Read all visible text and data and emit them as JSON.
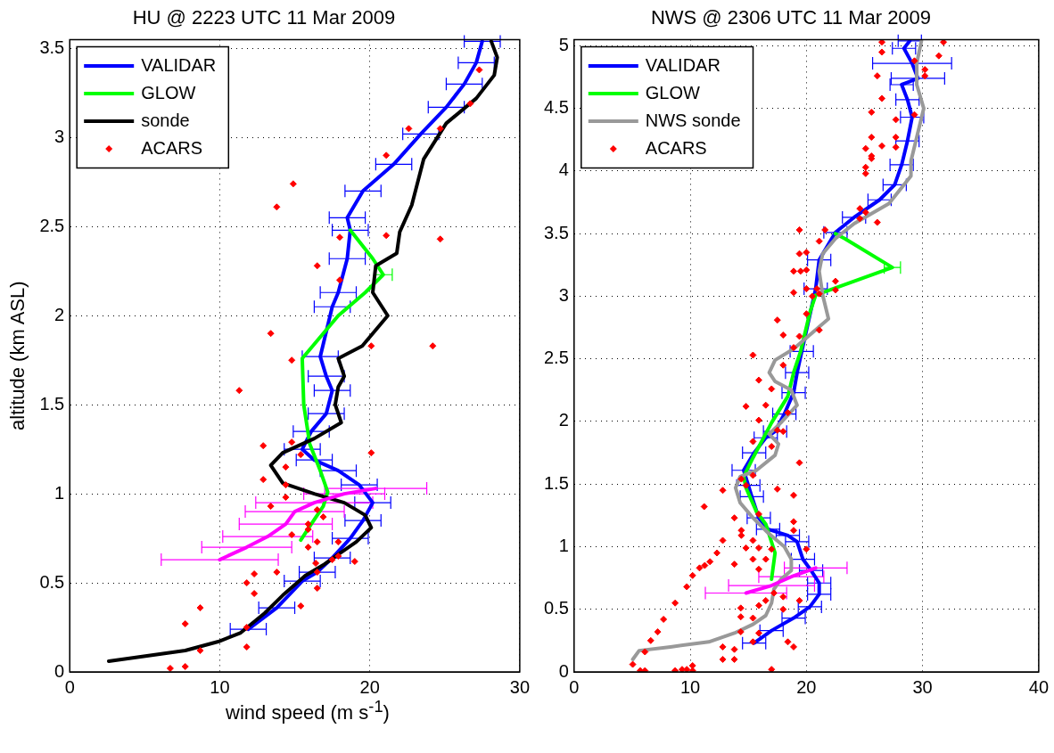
{
  "chart_data": [
    {
      "type": "line",
      "title": "HU @ 2223 UTC 11 Mar 2009",
      "xlabel": "wind speed (m s$^{-1}$)",
      "ylabel": "altitude (km ASL)",
      "xlim": [
        0,
        30
      ],
      "xticks": [
        0,
        10,
        20,
        30
      ],
      "ylim": [
        0,
        3.55
      ],
      "yticks": [
        0,
        0.5,
        1,
        1.5,
        2,
        2.5,
        3,
        3.5
      ],
      "grid": true,
      "legend": "top left",
      "series": [
        {
          "name": "VALIDAR",
          "type": "line",
          "color": "#0000ff",
          "marker": "none",
          "x": [
            11.9,
            13.8,
            15.5,
            16.5,
            17.5,
            18.7,
            19.55,
            20.2,
            19.3,
            17.9,
            16.3,
            15.5,
            16.1,
            17.1,
            17.5,
            17.1,
            16.7,
            17.5,
            17.9,
            18.5,
            18.7,
            18.5,
            19.55,
            21.6,
            23.4,
            25.1,
            26.3,
            27.1,
            27.5
          ],
          "values": [
            0.24,
            0.36,
            0.51,
            0.56,
            0.64,
            0.75,
            0.85,
            0.95,
            1.05,
            1.13,
            1.19,
            1.25,
            1.35,
            1.45,
            1.58,
            1.66,
            1.77,
            2.05,
            2.13,
            2.32,
            2.48,
            2.55,
            2.7,
            2.85,
            3.02,
            3.17,
            3.3,
            3.42,
            3.54
          ],
          "xerrors": [
            1.2,
            1.2,
            1.2,
            1.2,
            1.2,
            1.2,
            1.2,
            1.2,
            1.2,
            1.2,
            1.2,
            1.2,
            1.2,
            1.2,
            1.2,
            1.2,
            1.2,
            1.2,
            1.2,
            1.2,
            1.2,
            1.2,
            1.2,
            1.2,
            1.2,
            1.2,
            1.2,
            1.2,
            1.2
          ]
        },
        {
          "name": "GLOW",
          "type": "line",
          "color": "#00ff00",
          "marker": "none",
          "x": [
            15.4,
            16.1,
            16.9,
            17.2,
            16.7,
            16.0,
            15.6,
            15.5,
            17.9,
            19.7,
            20.9,
            20.2,
            18.7
          ],
          "values": [
            0.74,
            0.83,
            0.93,
            1.01,
            1.13,
            1.28,
            1.5,
            1.76,
            2.0,
            2.13,
            2.23,
            2.32,
            2.48
          ],
          "xerrors": [
            null,
            null,
            null,
            null,
            null,
            null,
            null,
            null,
            null,
            null,
            0.6,
            null,
            null
          ]
        },
        {
          "name": "sonde",
          "type": "line",
          "color": "#000000",
          "marker": "none",
          "x": [
            2.6,
            7.7,
            9.9,
            11.4,
            13.0,
            14.2,
            15.7,
            16.9,
            17.9,
            19.1,
            20.1,
            19.7,
            18.3,
            16.3,
            14.2,
            13.4,
            14.2,
            16.3,
            18.1,
            17.7,
            17.9,
            18.3,
            17.9,
            19.5,
            21.2,
            20.2,
            20.4,
            21.8,
            22.0,
            22.8,
            23.6,
            25.1,
            27.1,
            28.3,
            28.5,
            28.1
          ],
          "values": [
            0.06,
            0.12,
            0.17,
            0.22,
            0.33,
            0.43,
            0.54,
            0.6,
            0.66,
            0.73,
            0.81,
            0.88,
            0.95,
            1.0,
            1.06,
            1.16,
            1.23,
            1.31,
            1.4,
            1.5,
            1.6,
            1.66,
            1.76,
            1.83,
            2.0,
            2.13,
            2.28,
            2.35,
            2.47,
            2.62,
            2.88,
            3.08,
            3.22,
            3.35,
            3.45,
            3.54
          ]
        },
        {
          "type": "line",
          "color": "#ff00ff",
          "marker": "none",
          "x": [
            10.0,
            11.8,
            13.2,
            14.4,
            15.0,
            16.3,
            18.3,
            20.4
          ],
          "values": [
            0.63,
            0.7,
            0.76,
            0.83,
            0.9,
            0.95,
            1.0,
            1.03
          ],
          "xerrors": [
            3.9,
            3.0,
            3.0,
            3.1,
            3.3,
            3.9,
            2.7,
            3.4
          ]
        },
        {
          "name": "ACARS",
          "type": "scatter",
          "color": "#ff0000",
          "marker": "diamond",
          "x": [
            27.3,
            26.7,
            22.6,
            24.7,
            21.1,
            14.9,
            13.8,
            18.0,
            21.1,
            24.7,
            16.5,
            18.0,
            13.4,
            20.1,
            24.2,
            14.8,
            11.3,
            12.9,
            14.8,
            15.4,
            20.1,
            14.4,
            12.9,
            14.4,
            14.4,
            13.4,
            16.5,
            16.9,
            15.9,
            15.9,
            14.8,
            16.5,
            17.9,
            15.9,
            17.5,
            17.9,
            19.0,
            16.4,
            16.5,
            13.8,
            12.3,
            11.8,
            12.3,
            16.5,
            15.4,
            8.7,
            7.7,
            11.8,
            11.8,
            8.7,
            7.7,
            6.7
          ],
          "values": [
            3.38,
            3.19,
            3.05,
            3.05,
            2.9,
            2.74,
            2.61,
            2.44,
            2.45,
            2.43,
            2.28,
            2.2,
            1.9,
            1.83,
            1.83,
            1.75,
            1.58,
            1.27,
            1.29,
            1.22,
            1.23,
            1.15,
            1.08,
            1.05,
            0.98,
            0.93,
            0.91,
            0.87,
            0.83,
            0.8,
            0.77,
            0.73,
            0.73,
            0.7,
            0.63,
            0.65,
            0.62,
            0.61,
            0.56,
            0.56,
            0.55,
            0.5,
            0.44,
            0.47,
            0.37,
            0.36,
            0.27,
            0.25,
            0.14,
            0.12,
            0.03,
            0.02
          ]
        }
      ]
    },
    {
      "type": "line",
      "title": "NWS @ 2306 UTC 11 Mar 2009",
      "xlim": [
        0,
        40
      ],
      "xticks": [
        0,
        10,
        20,
        30,
        40
      ],
      "ylim": [
        0,
        5.05
      ],
      "yticks": [
        0,
        0.5,
        1,
        1.5,
        2,
        2.5,
        3,
        3.5,
        4,
        4.5,
        5
      ],
      "grid": true,
      "legend": "top left",
      "series": [
        {
          "name": "VALIDAR",
          "type": "line",
          "color": "#0000ff",
          "marker": "none",
          "x": [
            15.5,
            17.0,
            18.9,
            20.3,
            21.1,
            21.1,
            20.4,
            19.7,
            19.2,
            18.4,
            16.7,
            15.9,
            15.3,
            15.0,
            14.6,
            15.5,
            16.5,
            17.3,
            18.1,
            18.9,
            19.2,
            19.6,
            20.8,
            21.1,
            22.5,
            24.1,
            26.3,
            27.6,
            28.2,
            28.7,
            29.1,
            28.7,
            28.2,
            29.6,
            29.1,
            28.4,
            28.9
          ],
          "values": [
            0.23,
            0.33,
            0.43,
            0.52,
            0.62,
            0.71,
            0.81,
            0.9,
            1.04,
            1.09,
            1.14,
            1.23,
            1.4,
            1.49,
            1.61,
            1.75,
            1.87,
            1.92,
            2.06,
            2.23,
            2.39,
            2.56,
            3.06,
            3.29,
            3.51,
            3.63,
            3.77,
            3.89,
            4.05,
            4.24,
            4.43,
            4.57,
            4.69,
            4.74,
            4.86,
            4.98,
            5.04
          ],
          "xerrors": [
            1,
            1,
            1,
            1,
            1,
            1,
            1,
            1,
            1,
            1,
            1,
            1,
            1,
            1,
            1,
            1,
            1,
            1,
            1,
            1,
            1,
            1,
            1,
            1,
            1,
            1,
            1,
            1,
            1,
            1,
            1,
            1,
            1,
            2.3,
            3.4,
            1,
            1
          ]
        },
        {
          "name": "GLOW",
          "type": "line",
          "color": "#00ff00",
          "marker": "none",
          "x": [
            17.0,
            17.3,
            16.5,
            15.7,
            14.8,
            14.6,
            15.4,
            17.0,
            18.4,
            18.9,
            19.5,
            20.3,
            20.8,
            27.4,
            23.3,
            22.5
          ],
          "values": [
            0.74,
            0.95,
            1.18,
            1.28,
            1.47,
            1.56,
            1.71,
            1.99,
            2.2,
            2.39,
            2.56,
            2.87,
            3.01,
            3.23,
            3.46,
            3.5
          ],
          "xerrors": [
            null,
            null,
            null,
            null,
            null,
            null,
            null,
            null,
            null,
            null,
            null,
            null,
            null,
            0.7,
            null,
            null
          ]
        },
        {
          "name": "NWS sonde",
          "type": "line",
          "color": "#999999",
          "marker": "none",
          "x": [
            5.05,
            5.6,
            8.3,
            11.6,
            13.8,
            15.4,
            16.5,
            17.0,
            17.2,
            17.8,
            18.7,
            18.7,
            18.1,
            16.7,
            15.4,
            14.3,
            13.9,
            14.3,
            15.7,
            17.3,
            17.6,
            16.8,
            17.8,
            19.2,
            18.7,
            17.3,
            16.8,
            17.3,
            18.9,
            21.9,
            21.4,
            21.1,
            21.4,
            22.5,
            24.1,
            27.1,
            29.0,
            29.0,
            29.5,
            30.1,
            29.5,
            29.5,
            29.9
          ],
          "values": [
            0.1,
            0.17,
            0.2,
            0.24,
            0.31,
            0.38,
            0.45,
            0.55,
            0.66,
            0.74,
            0.81,
            0.9,
            1.0,
            1.11,
            1.23,
            1.35,
            1.47,
            1.56,
            1.61,
            1.73,
            1.82,
            1.9,
            1.99,
            2.13,
            2.25,
            2.32,
            2.39,
            2.49,
            2.58,
            2.82,
            3.01,
            3.2,
            3.34,
            3.46,
            3.58,
            3.74,
            3.96,
            4.08,
            4.27,
            4.5,
            4.69,
            4.86,
            5.04
          ]
        },
        {
          "type": "line",
          "color": "#ff00ff",
          "marker": "none",
          "x": [
            14.8,
            17.0,
            18.7,
            20.8
          ],
          "values": [
            0.63,
            0.69,
            0.76,
            0.83
          ],
          "xerrors": [
            3.5,
            3.7,
            2.8,
            2.7
          ]
        },
        {
          "name": "ACARS",
          "type": "scatter",
          "color": "#ff0000",
          "marker": "diamond",
          "x": [
            26.5,
            31.8,
            26.5,
            31.4,
            29.3,
            30.2,
            26.1,
            30.2,
            26.5,
            25.6,
            27.7,
            29.3,
            25.6,
            27.7,
            25.1,
            26.5,
            27.7,
            25.6,
            25.6,
            25.1,
            25.1,
            24.6,
            25.1,
            26.1,
            24.6,
            19.4,
            21.6,
            21.1,
            19.4,
            20.0,
            18.9,
            19.5,
            20.0,
            22.5,
            20.0,
            20.9,
            22.5,
            18.9,
            20.5,
            21.1,
            20.0,
            17.5,
            21.1,
            18.0,
            19.4,
            18.9,
            15.4,
            18.0,
            15.9,
            17.0,
            14.8,
            16.5,
            18.4,
            15.9,
            17.5,
            18.0,
            15.4,
            17.0,
            19.4,
            15.4,
            14.4,
            14.8,
            17.5,
            12.8,
            18.9,
            11.2,
            13.8,
            15.9,
            18.9,
            14.4,
            14.4,
            18.9,
            12.8,
            15.4,
            20.0,
            12.3,
            14.8,
            15.9,
            17.0,
            11.7,
            11.25,
            10.8,
            13.8,
            15.4,
            16.5,
            15.9,
            10.2,
            9.7,
            17.2,
            18.0,
            16.5,
            19.4,
            8.7,
            14.35,
            15.9,
            18.0,
            14.35,
            7.7,
            15.4,
            7.2,
            14.35,
            15.9,
            6.6,
            15.4,
            18.4,
            18.9,
            12.8,
            13.8,
            6.1,
            12.8,
            13.8,
            5.05,
            5.7,
            6.1,
            8.7,
            9.3,
            9.7,
            10.2,
            10.2,
            17.0
          ],
          "values": [
            5.03,
            5.03,
            4.95,
            4.92,
            4.88,
            4.81,
            4.76,
            4.76,
            4.58,
            4.47,
            4.41,
            4.45,
            4.27,
            4.27,
            4.18,
            4.2,
            4.19,
            4.12,
            4.1,
            4.03,
            3.98,
            3.7,
            3.67,
            3.59,
            3.62,
            3.53,
            3.53,
            3.44,
            3.34,
            3.35,
            3.2,
            3.2,
            3.21,
            3.12,
            3.06,
            3.06,
            3.05,
            3.03,
            3.0,
            3.02,
            2.86,
            2.81,
            2.73,
            2.69,
            2.68,
            2.59,
            2.53,
            2.45,
            2.33,
            2.26,
            2.12,
            2.13,
            2.07,
            2.01,
            1.93,
            1.92,
            1.84,
            1.8,
            1.67,
            1.57,
            1.54,
            1.49,
            1.46,
            1.45,
            1.41,
            1.32,
            1.23,
            1.26,
            1.2,
            1.13,
            1.09,
            1.13,
            1.05,
            1.05,
            0.98,
            0.95,
            0.99,
            0.99,
            0.98,
            0.88,
            0.85,
            0.83,
            0.86,
            0.9,
            0.9,
            0.82,
            0.77,
            0.68,
            0.63,
            0.6,
            0.57,
            0.57,
            0.55,
            0.51,
            0.53,
            0.5,
            0.44,
            0.42,
            0.43,
            0.32,
            0.32,
            0.31,
            0.25,
            0.24,
            0.24,
            0.2,
            0.2,
            0.18,
            0.16,
            0.1,
            0.1,
            0.06,
            0.01,
            0.01,
            0.01,
            0.02,
            0.02,
            0.05,
            0.01,
            0.02
          ]
        }
      ]
    }
  ]
}
